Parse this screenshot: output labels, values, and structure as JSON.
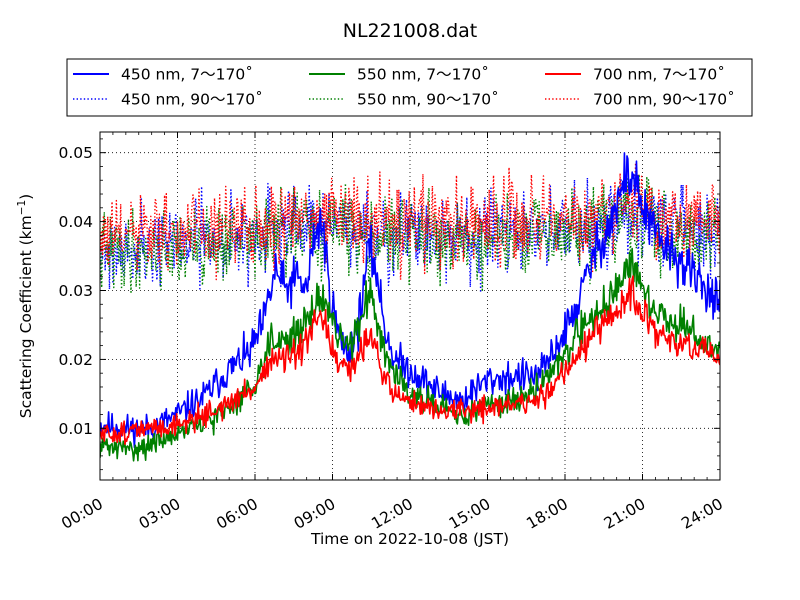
{
  "chart_data": {
    "type": "line",
    "title": "NL221008.dat",
    "xlabel": "Time on 2022-10-08 (JST)",
    "ylabel": "Scattering Coefficient (km",
    "ylabel_sup": "−1",
    "ylabel_close": ")",
    "xlim": [
      0,
      24
    ],
    "ylim": [
      0.0025,
      0.053
    ],
    "x_ticks": [
      0,
      3,
      6,
      9,
      12,
      15,
      18,
      21,
      24
    ],
    "x_tick_labels": [
      "00:00",
      "03:00",
      "06:00",
      "09:00",
      "12:00",
      "15:00",
      "18:00",
      "21:00",
      "24:00"
    ],
    "y_ticks": [
      0.01,
      0.02,
      0.03,
      0.04,
      0.05
    ],
    "y_tick_labels": [
      "0.01",
      "0.02",
      "0.03",
      "0.04",
      "0.05"
    ],
    "grid": true,
    "legend_position": "top",
    "series": [
      {
        "name": "450 nm, 7～170˚",
        "color": "#0000ff",
        "style": "solid",
        "noise": 0.0014,
        "seed": 11,
        "x": [
          0,
          1,
          2,
          3,
          4,
          5,
          5.8,
          6.3,
          6.8,
          7.2,
          7.6,
          8.0,
          8.3,
          8.6,
          8.9,
          9.2,
          9.6,
          10.0,
          10.4,
          10.7,
          11.0,
          11.4,
          12.0,
          13.0,
          14.0,
          15.0,
          16.0,
          17.0,
          18.0,
          18.5,
          19.0,
          19.5,
          20.0,
          20.3,
          20.6,
          21.0,
          21.5,
          22.0,
          23.0,
          24.0
        ],
        "y": [
          0.0105,
          0.01,
          0.01,
          0.012,
          0.0145,
          0.0185,
          0.021,
          0.025,
          0.033,
          0.03,
          0.032,
          0.03,
          0.038,
          0.04,
          0.03,
          0.024,
          0.021,
          0.025,
          0.036,
          0.033,
          0.025,
          0.02,
          0.0185,
          0.0155,
          0.014,
          0.017,
          0.0175,
          0.0175,
          0.024,
          0.028,
          0.034,
          0.038,
          0.042,
          0.046,
          0.047,
          0.042,
          0.038,
          0.036,
          0.032,
          0.0285
        ]
      },
      {
        "name": "450 nm, 90～170˚",
        "color": "#0000ff",
        "style": "dotted",
        "noise": 0.0022,
        "seed": 21,
        "x": [
          0,
          2,
          4,
          6,
          8,
          9,
          10,
          12,
          15,
          18,
          20,
          21,
          22,
          24
        ],
        "y": [
          0.036,
          0.0365,
          0.037,
          0.038,
          0.039,
          0.0395,
          0.039,
          0.038,
          0.0375,
          0.0385,
          0.0405,
          0.0405,
          0.0395,
          0.038
        ]
      },
      {
        "name": "550 nm, 7～170˚",
        "color": "#008000",
        "style": "solid",
        "noise": 0.0012,
        "seed": 31,
        "x": [
          0,
          1,
          2,
          3,
          4,
          5,
          6,
          6.6,
          7.2,
          7.8,
          8.3,
          8.7,
          9.2,
          9.7,
          10.1,
          10.5,
          10.9,
          11.4,
          12.0,
          13.0,
          14.0,
          15.0,
          16.0,
          17.0,
          18.0,
          19.0,
          19.5,
          20.0,
          20.5,
          21.0,
          21.5,
          22.0,
          23.0,
          24.0
        ],
        "y": [
          0.0075,
          0.007,
          0.0075,
          0.0095,
          0.0105,
          0.013,
          0.0165,
          0.023,
          0.023,
          0.024,
          0.028,
          0.029,
          0.023,
          0.022,
          0.026,
          0.03,
          0.023,
          0.018,
          0.0155,
          0.013,
          0.0115,
          0.0135,
          0.014,
          0.016,
          0.021,
          0.026,
          0.028,
          0.03,
          0.034,
          0.03,
          0.027,
          0.026,
          0.0235,
          0.021
        ]
      },
      {
        "name": "550 nm, 90～170˚",
        "color": "#008000",
        "style": "dotted",
        "noise": 0.0022,
        "seed": 41,
        "x": [
          0,
          2,
          4,
          6,
          8,
          9,
          10,
          12,
          15,
          18,
          20,
          21,
          22,
          24
        ],
        "y": [
          0.0355,
          0.036,
          0.0365,
          0.0375,
          0.0385,
          0.039,
          0.0385,
          0.0375,
          0.037,
          0.038,
          0.04,
          0.04,
          0.039,
          0.0375
        ]
      },
      {
        "name": "700 nm, 7～170˚",
        "color": "#ff0000",
        "style": "solid",
        "noise": 0.0011,
        "seed": 51,
        "x": [
          0,
          1,
          2,
          3,
          4,
          5,
          6,
          6.6,
          7.2,
          7.8,
          8.3,
          8.7,
          9.2,
          9.7,
          10.1,
          10.5,
          10.9,
          11.4,
          12.0,
          13.0,
          14.0,
          15.0,
          16.0,
          17.0,
          18.0,
          19.0,
          19.5,
          20.0,
          20.5,
          21.0,
          21.5,
          22.0,
          23.0,
          24.0
        ],
        "y": [
          0.009,
          0.0095,
          0.01,
          0.0105,
          0.012,
          0.0135,
          0.016,
          0.02,
          0.02,
          0.021,
          0.025,
          0.0255,
          0.019,
          0.018,
          0.0215,
          0.0245,
          0.018,
          0.015,
          0.014,
          0.0125,
          0.0125,
          0.013,
          0.0135,
          0.014,
          0.0185,
          0.023,
          0.025,
          0.0265,
          0.03,
          0.0265,
          0.024,
          0.023,
          0.0215,
          0.02
        ]
      },
      {
        "name": "700 nm, 90～170˚",
        "color": "#ff0000",
        "style": "dotted",
        "noise": 0.0022,
        "seed": 61,
        "x": [
          0,
          2,
          4,
          6,
          8,
          9,
          10,
          12,
          15,
          18,
          20,
          21,
          22,
          24
        ],
        "y": [
          0.0375,
          0.038,
          0.0385,
          0.0395,
          0.0405,
          0.041,
          0.0405,
          0.04,
          0.0395,
          0.04,
          0.0425,
          0.042,
          0.041,
          0.0395
        ]
      }
    ]
  }
}
